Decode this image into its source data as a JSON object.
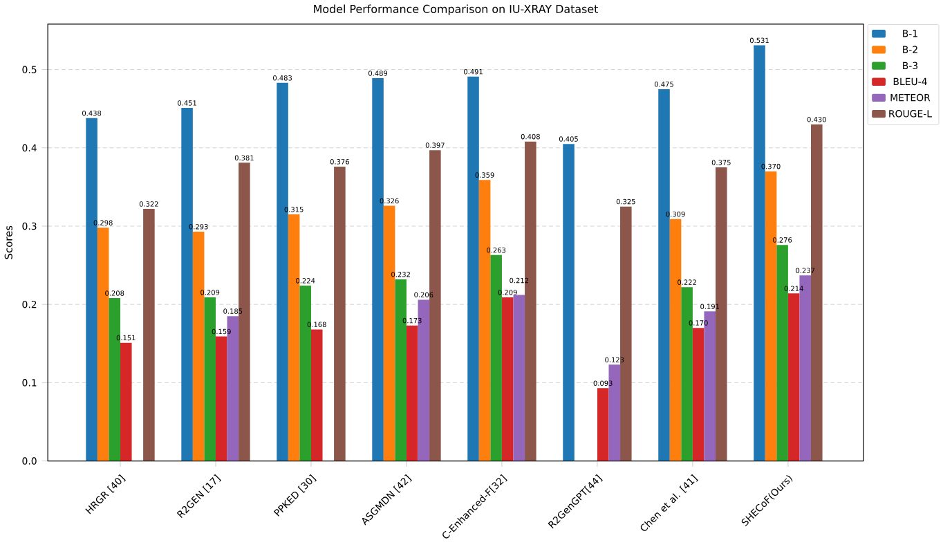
{
  "chart_data": {
    "type": "bar",
    "title": "Model Performance Comparison on IU-XRAY Dataset",
    "ylabel": "Scores",
    "categories": [
      "HRGR [40]",
      "R2GEN [17]",
      "PPKED [30]",
      "ASGMDN [42]",
      "C-Enhanced-F[32]",
      "R2GenGPT[44]",
      "Chen et al. [41]",
      "SHECoF(Ours)"
    ],
    "series": [
      {
        "name": "B-1",
        "color": "#1f77b4",
        "values": [
          0.438,
          0.451,
          0.483,
          0.489,
          0.491,
          0.405,
          0.475,
          0.531
        ],
        "value_labels": [
          "0.438",
          "0.451",
          "0.483",
          "0.489",
          "0.491",
          "0.405",
          "0.475",
          "0.531"
        ]
      },
      {
        "name": "B-2",
        "color": "#ff7f0e",
        "values": [
          0.298,
          0.293,
          0.315,
          0.326,
          0.359,
          null,
          0.309,
          0.37
        ],
        "value_labels": [
          "0.298",
          "0.293",
          "0.315",
          "0.326",
          "0.359",
          null,
          "0.309",
          "0.370"
        ]
      },
      {
        "name": "B-3",
        "color": "#2ca02c",
        "values": [
          0.208,
          0.209,
          0.224,
          0.232,
          0.263,
          null,
          0.222,
          0.276
        ],
        "value_labels": [
          "0.208",
          "0.209",
          "0.224",
          "0.232",
          "0.263",
          null,
          "0.222",
          "0.276"
        ]
      },
      {
        "name": "BLEU-4",
        "color": "#d62728",
        "values": [
          0.151,
          0.159,
          0.168,
          0.173,
          0.209,
          0.093,
          0.17,
          0.214
        ],
        "value_labels": [
          "0.151",
          "0.159",
          "0.168",
          "0.173",
          "0.209",
          "0.093",
          "0.170",
          "0.214"
        ]
      },
      {
        "name": "METEOR",
        "color": "#9467bd",
        "values": [
          null,
          0.185,
          null,
          0.206,
          0.212,
          0.123,
          0.191,
          0.237
        ],
        "value_labels": [
          null,
          "0.185",
          null,
          "0.206",
          "0.212",
          "0.123",
          "0.191",
          "0.237"
        ]
      },
      {
        "name": "ROUGE-L",
        "color": "#8c564b",
        "values": [
          0.322,
          0.381,
          0.376,
          0.397,
          0.408,
          0.325,
          0.375,
          0.43
        ],
        "value_labels": [
          "0.322",
          "0.381",
          "0.376",
          "0.397",
          "0.408",
          "0.325",
          "0.375",
          "0.430"
        ]
      }
    ],
    "ylim": [
      0,
      0.558
    ],
    "yticks": [
      {
        "value": 0,
        "label": "0.0"
      },
      {
        "value": 0.1,
        "label": "0.1"
      },
      {
        "value": 0.2,
        "label": "0.2"
      },
      {
        "value": 0.3,
        "label": "0.3"
      },
      {
        "value": 0.4,
        "label": "0.4"
      },
      {
        "value": 0.5,
        "label": "0.5"
      }
    ],
    "grid": "y",
    "legend": "top right"
  }
}
